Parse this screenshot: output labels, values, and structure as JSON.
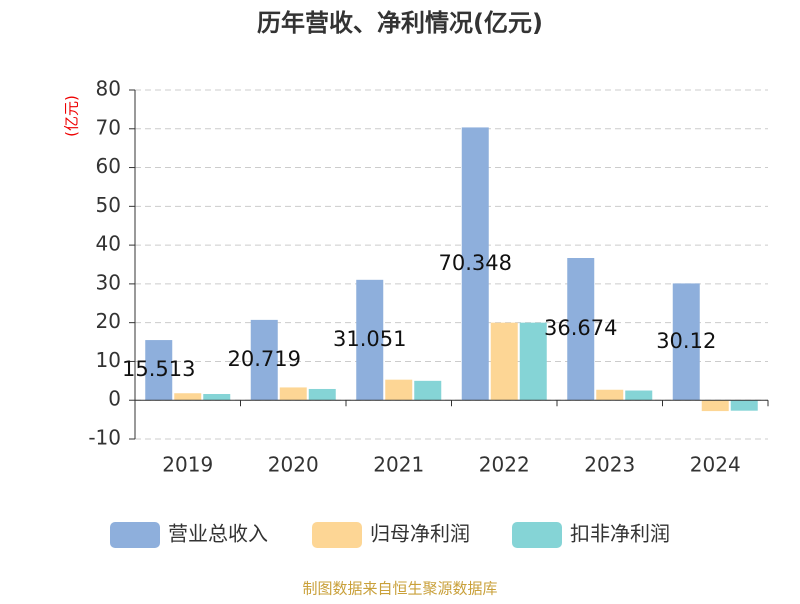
{
  "chart_data": {
    "type": "bar",
    "title": "历年营收、净利情况(亿元)",
    "y_axis_label": "(亿元)",
    "source": "制图数据来自恒生聚源数据库",
    "categories": [
      "2019",
      "2020",
      "2021",
      "2022",
      "2023",
      "2024"
    ],
    "series": [
      {
        "name": "营业总收入",
        "color": "#8eafdc",
        "values": [
          15.513,
          20.719,
          31.051,
          70.348,
          36.674,
          30.12
        ],
        "show_labels": true
      },
      {
        "name": "归母净利润",
        "color": "#fdd695",
        "values": [
          1.8,
          3.3,
          5.3,
          20.0,
          2.7,
          -2.8
        ]
      },
      {
        "name": "扣非净利润",
        "color": "#85d4d6",
        "values": [
          1.6,
          2.9,
          5.0,
          20.0,
          2.5,
          -2.7
        ]
      }
    ],
    "ylim": [
      -10,
      80
    ],
    "yticks": [
      -10,
      0,
      10,
      20,
      30,
      40,
      50,
      60,
      70,
      80
    ],
    "grid": true
  }
}
